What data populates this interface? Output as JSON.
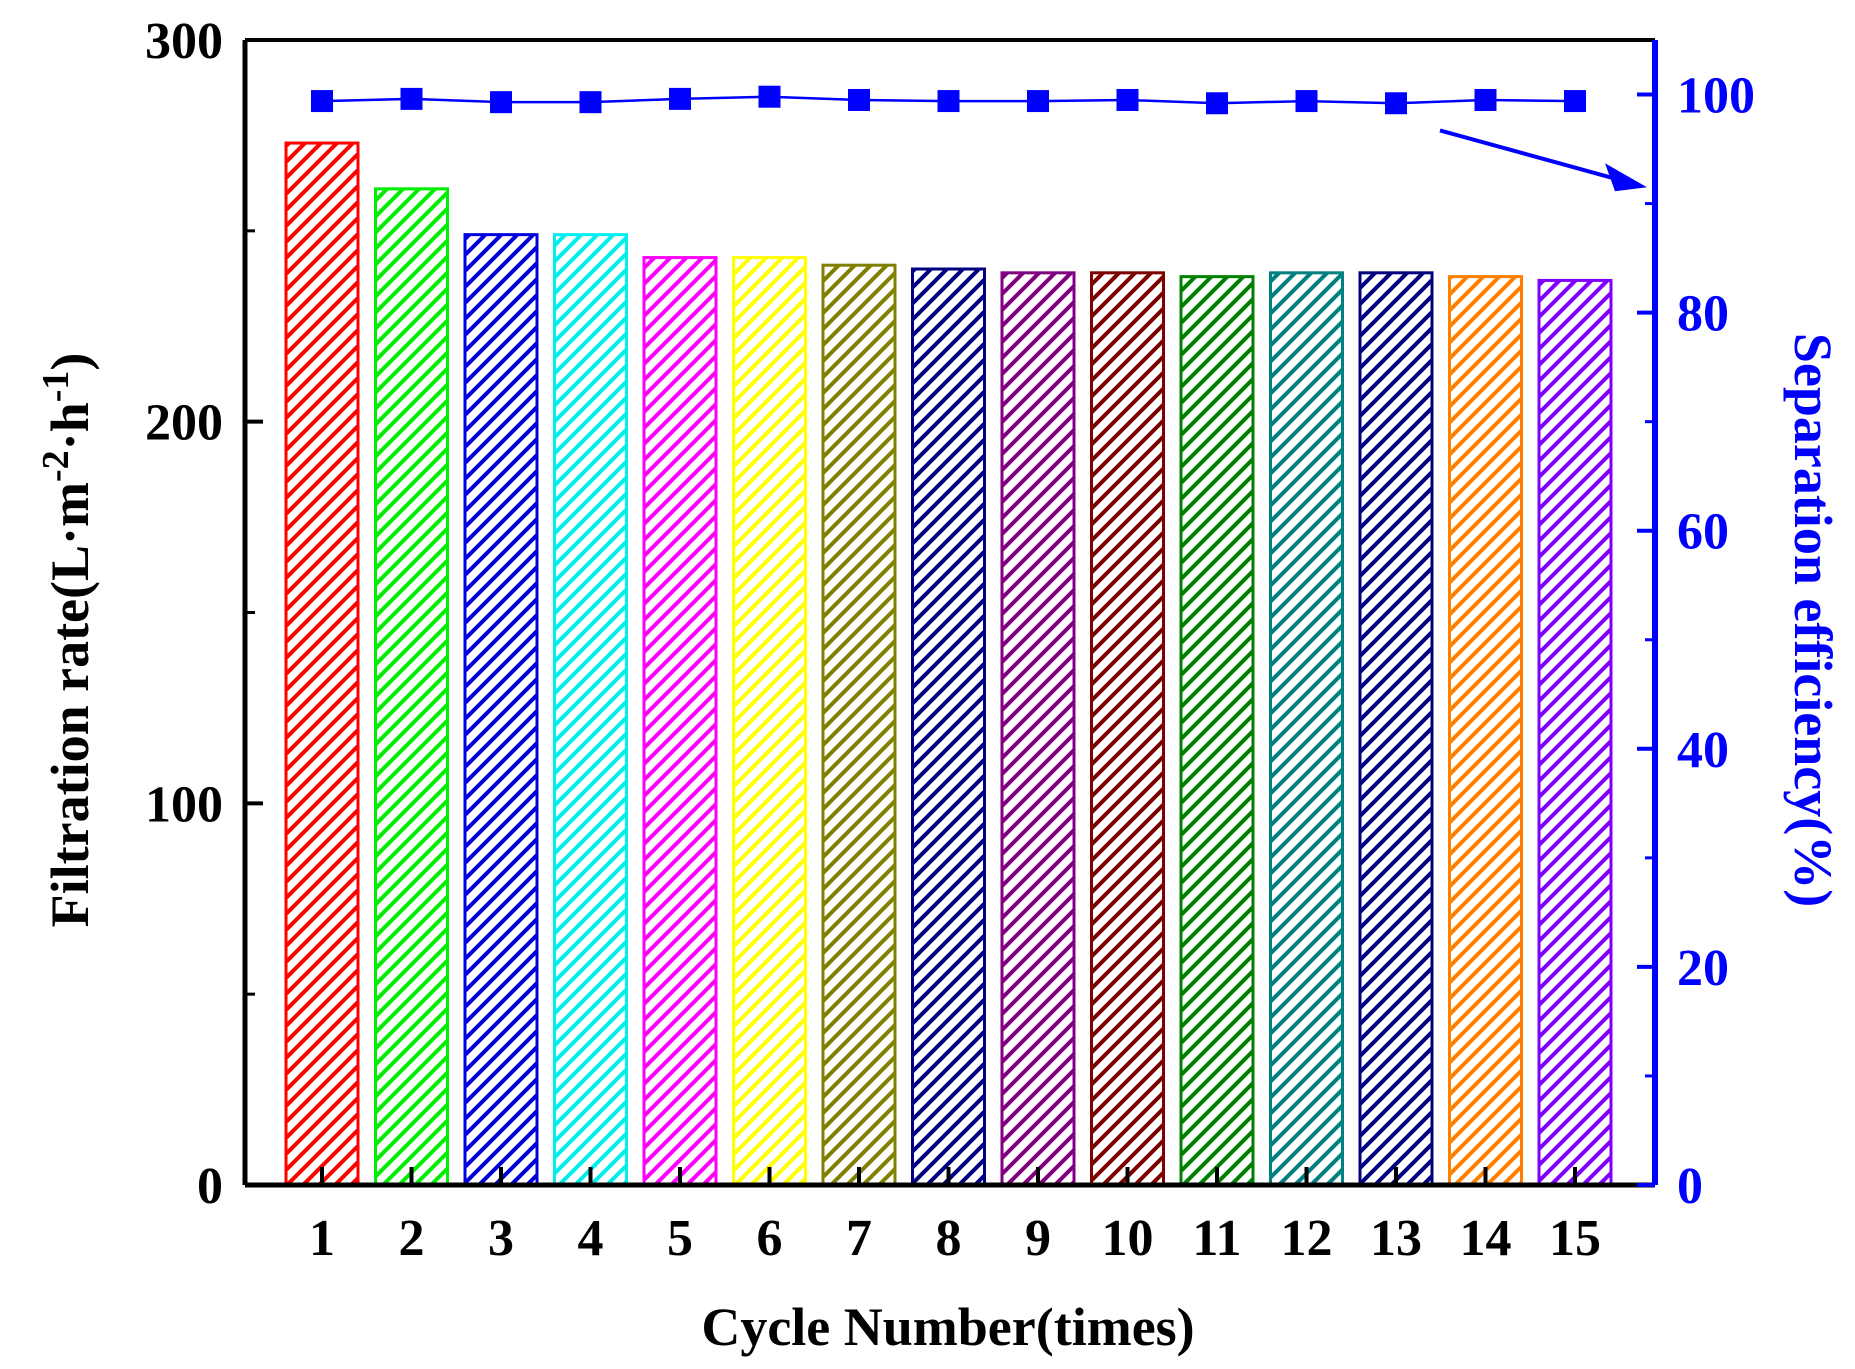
{
  "chart_data": {
    "type": "bar+line",
    "categories": [
      "1",
      "2",
      "3",
      "4",
      "5",
      "6",
      "7",
      "8",
      "9",
      "10",
      "11",
      "12",
      "13",
      "14",
      "15"
    ],
    "series": [
      {
        "axis": "left",
        "type": "bar",
        "values": [
          273,
          261,
          249,
          249,
          243,
          243,
          241,
          240,
          239,
          239,
          238,
          239,
          239,
          238,
          237
        ],
        "colors": [
          "#ff0000",
          "#00ee00",
          "#0000dd",
          "#00eeee",
          "#ff00ff",
          "#ffff00",
          "#808000",
          "#000080",
          "#800080",
          "#800000",
          "#008000",
          "#008080",
          "#000080",
          "#ff8000",
          "#8000ff"
        ]
      },
      {
        "axis": "right",
        "type": "line",
        "color": "#0000ff",
        "values": [
          99.4,
          99.6,
          99.3,
          99.3,
          99.6,
          99.8,
          99.5,
          99.4,
          99.4,
          99.5,
          99.2,
          99.4,
          99.2,
          99.5,
          99.4
        ]
      }
    ],
    "xlabel": "Cycle Number(times)",
    "ylabel_left": "Filtration rate(L·m",
    "ylabel_left_sup1": "-2",
    "ylabel_left_mid": "·h",
    "ylabel_left_sup2": "-1",
    "ylabel_left_end": ")",
    "ylabel_right": "Separation efficiency(%)",
    "ylim_left": [
      0,
      300
    ],
    "yticks_left": [
      "0",
      "100",
      "200",
      "300"
    ],
    "ylim_right": [
      0,
      105
    ],
    "yticks_right": [
      "0",
      "20",
      "40",
      "60",
      "80",
      "100"
    ],
    "grid": false,
    "legend": false,
    "annotation": "arrow pointing to right axis"
  }
}
